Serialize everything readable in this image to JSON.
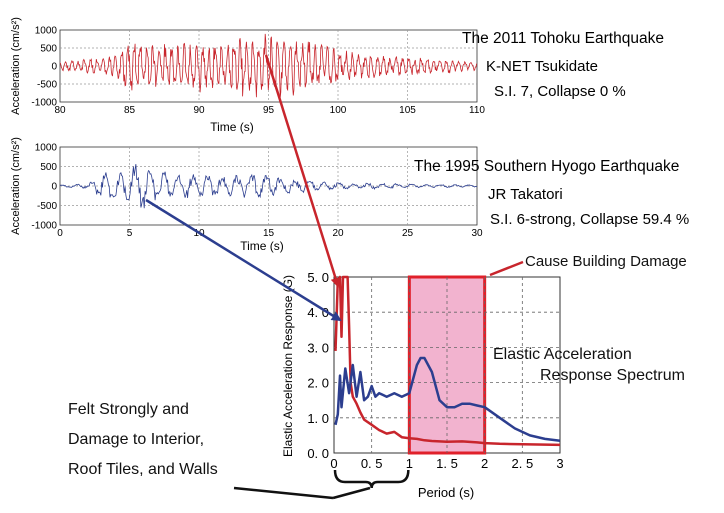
{
  "chart_data": [
    {
      "type": "line",
      "title": "",
      "xlabel": "Time (s)",
      "ylabel": "Acceleration (cm/s²)",
      "xlim": [
        80,
        110
      ],
      "ylim": [
        -1000,
        1000
      ],
      "xticks": [
        80,
        85,
        90,
        95,
        100,
        105,
        110
      ],
      "yticks": [
        1000,
        500,
        0,
        -500,
        -1000
      ],
      "grid": true,
      "series": [
        {
          "name": "",
          "color": "#c8252c",
          "envelope": {
            "t": [
              80,
              82,
              84,
              85,
              86,
              88,
              90,
              92,
              94,
              95,
              96,
              98,
              100,
              102,
              104,
              106,
              108,
              110
            ],
            "amp": [
              150,
              200,
              300,
              850,
              650,
              700,
              750,
              800,
              900,
              1000,
              950,
              700,
              500,
              400,
              300,
              250,
              200,
              150
            ]
          }
        }
      ],
      "annotations": [
        "The 2011 Tohoku Earthquake",
        "K-NET Tsukidate",
        "S.I. 7, Collapse 0 %"
      ]
    },
    {
      "type": "line",
      "title": "",
      "xlabel": "Time (s)",
      "ylabel": "Acceleration (cm/s²)",
      "xlim": [
        0,
        30
      ],
      "ylim": [
        -1000,
        1000
      ],
      "xticks": [
        0,
        5,
        10,
        15,
        20,
        25,
        30
      ],
      "yticks": [
        1000,
        500,
        0,
        -500,
        -1000
      ],
      "grid": true,
      "series": [
        {
          "name": "",
          "color": "#2c3e8f",
          "envelope": {
            "t": [
              0,
              2,
              3,
              4,
              5,
              6,
              7,
              8,
              10,
              12,
              14,
              16,
              18,
              20,
              22,
              25,
              28,
              30
            ],
            "amp": [
              30,
              60,
              350,
              500,
              450,
              700,
              450,
              350,
              300,
              250,
              350,
              250,
              150,
              100,
              80,
              60,
              40,
              30
            ]
          }
        }
      ],
      "annotations": [
        "The 1995 Southern Hyogo Earthquake",
        "JR Takatori",
        "S.I. 6-strong, Collapse 59.4 %"
      ]
    },
    {
      "type": "line",
      "title": "",
      "xlabel": "Period  (s)",
      "ylabel": "Elastic Acceleration Response (G)",
      "xlim": [
        0,
        3
      ],
      "ylim": [
        0,
        5
      ],
      "xticks": [
        0,
        0.5,
        1,
        1.5,
        2,
        2.5,
        3
      ],
      "xtick_labels": [
        "0",
        "0. 5",
        "1",
        "1. 5",
        "2",
        "2. 5",
        "3"
      ],
      "yticks": [
        0,
        1,
        2,
        3,
        4,
        5
      ],
      "ytick_labels": [
        "0. 0",
        "1. 0",
        "2. 0",
        "3. 0",
        "4. 0",
        "5. 0"
      ],
      "grid": true,
      "series": [
        {
          "name": "",
          "color": "#c8252c",
          "x": [
            0.02,
            0.05,
            0.08,
            0.1,
            0.12,
            0.14,
            0.16,
            0.18,
            0.2,
            0.22,
            0.25,
            0.3,
            0.35,
            0.4,
            0.5,
            0.6,
            0.7,
            0.8,
            0.9,
            1.0,
            1.1,
            1.2,
            1.3,
            1.5,
            1.7,
            1.9,
            2.0,
            2.2,
            2.5,
            2.8,
            3.0
          ],
          "y": [
            2.9,
            4.9,
            5.0,
            3.3,
            5.0,
            5.0,
            5.0,
            5.0,
            3.6,
            2.0,
            1.6,
            1.4,
            1.15,
            0.95,
            0.8,
            0.65,
            0.55,
            0.6,
            0.45,
            0.42,
            0.4,
            0.36,
            0.34,
            0.32,
            0.33,
            0.3,
            0.28,
            0.26,
            0.25,
            0.24,
            0.23
          ]
        },
        {
          "name": "",
          "color": "#2c3e8f",
          "x": [
            0.02,
            0.05,
            0.08,
            0.1,
            0.15,
            0.2,
            0.25,
            0.3,
            0.35,
            0.4,
            0.45,
            0.5,
            0.55,
            0.6,
            0.7,
            0.8,
            0.9,
            1.0,
            1.1,
            1.15,
            1.2,
            1.3,
            1.4,
            1.5,
            1.6,
            1.7,
            1.8,
            1.9,
            2.0,
            2.2,
            2.4,
            2.6,
            2.8,
            3.0
          ],
          "y": [
            0.8,
            1.1,
            2.2,
            1.3,
            2.4,
            1.7,
            2.5,
            1.6,
            2.3,
            1.5,
            1.6,
            1.9,
            1.6,
            1.7,
            1.6,
            1.7,
            1.6,
            1.7,
            2.5,
            2.7,
            2.7,
            2.3,
            1.5,
            1.3,
            1.3,
            1.4,
            1.4,
            1.35,
            1.3,
            1.0,
            0.7,
            0.5,
            0.4,
            0.35
          ]
        }
      ],
      "highlight": {
        "x": [
          1,
          2
        ],
        "color": "#f2b3cf",
        "edge": "#e0202a"
      },
      "bracket": {
        "x": [
          0,
          1
        ]
      }
    }
  ],
  "labels": {
    "cause": "Cause Building Damage",
    "spectrum_line1": "Elastic Acceleration",
    "spectrum_line2": "Response Spectrum",
    "felt_line1": "Felt Strongly and",
    "felt_line2": "Damage to Interior,",
    "felt_line3": "Roof Tiles, and Walls"
  },
  "colors": {
    "red": "#c8252c",
    "blue": "#2c3e8f",
    "highlight_fill": "#f2b3cf",
    "highlight_edge": "#e0202a"
  }
}
